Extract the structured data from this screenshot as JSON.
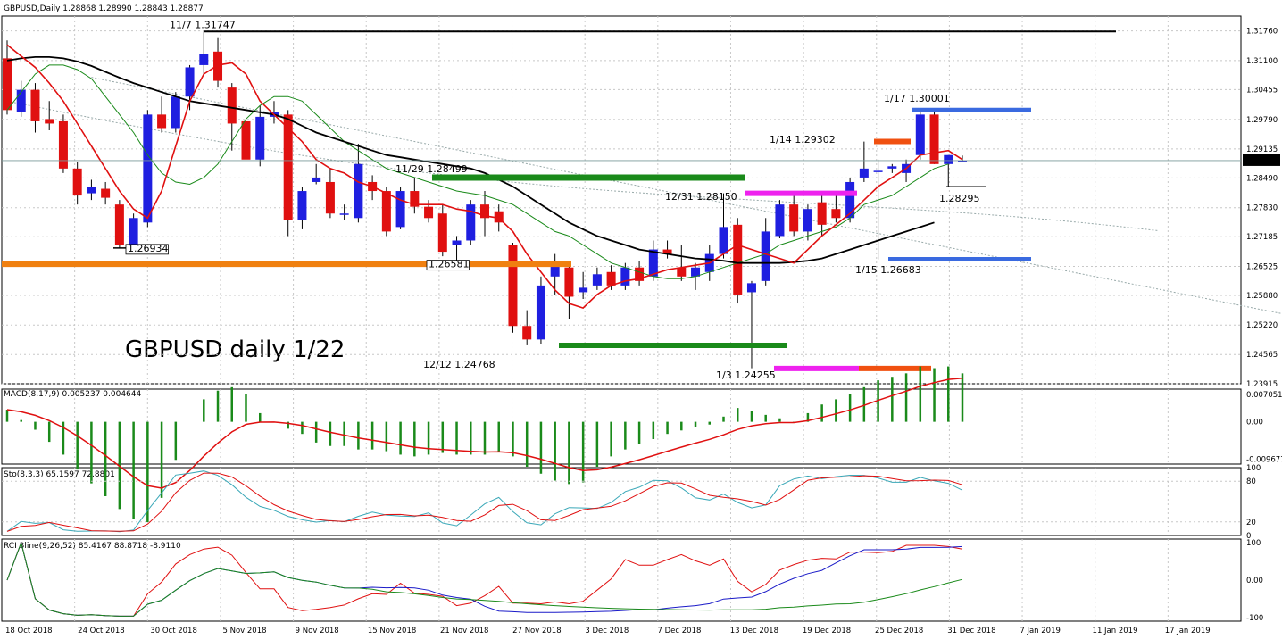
{
  "chart_data": {
    "type": "candlestick",
    "symbol_header": "GBPUSD,Daily  1.28868 1.28990 1.28843 1.28877",
    "watermark": "GBPUSD daily 1/22",
    "current_price_label": "1.28877",
    "x_labels": [
      "18 Oct 2018",
      "24 Oct 2018",
      "30 Oct 2018",
      "5 Nov 2018",
      "9 Nov 2018",
      "15 Nov 2018",
      "21 Nov 2018",
      "27 Nov 2018",
      "3 Dec 2018",
      "7 Dec 2018",
      "13 Dec 2018",
      "19 Dec 2018",
      "25 Dec 2018",
      "31 Dec 2018",
      "7 Jan 2019",
      "11 Jan 2019",
      "17 Jan 2019"
    ],
    "price_ticks": [
      "1.31760",
      "1.31100",
      "1.30455",
      "1.29790",
      "1.29135",
      "1.28490",
      "1.27830",
      "1.27185",
      "1.26525",
      "1.25880",
      "1.25220",
      "1.24565",
      "1.23915"
    ],
    "price_range": [
      1.23915,
      1.3209
    ],
    "candles": [
      {
        "o": 1.3115,
        "h": 1.3155,
        "l": 1.299,
        "c": 1.3
      },
      {
        "o": 1.2995,
        "h": 1.3065,
        "l": 1.2985,
        "c": 1.3045
      },
      {
        "o": 1.3045,
        "h": 1.306,
        "l": 1.295,
        "c": 1.2975
      },
      {
        "o": 1.298,
        "h": 1.302,
        "l": 1.2955,
        "c": 1.297
      },
      {
        "o": 1.2975,
        "h": 1.299,
        "l": 1.286,
        "c": 1.287
      },
      {
        "o": 1.287,
        "h": 1.2885,
        "l": 1.279,
        "c": 1.281
      },
      {
        "o": 1.2815,
        "h": 1.2845,
        "l": 1.28,
        "c": 1.283
      },
      {
        "o": 1.2825,
        "h": 1.284,
        "l": 1.279,
        "c": 1.2805
      },
      {
        "o": 1.279,
        "h": 1.28,
        "l": 1.2693,
        "c": 1.27
      },
      {
        "o": 1.27,
        "h": 1.277,
        "l": 1.2693,
        "c": 1.276
      },
      {
        "o": 1.275,
        "h": 1.3,
        "l": 1.274,
        "c": 1.299
      },
      {
        "o": 1.299,
        "h": 1.303,
        "l": 1.295,
        "c": 1.296
      },
      {
        "o": 1.296,
        "h": 1.304,
        "l": 1.295,
        "c": 1.303
      },
      {
        "o": 1.303,
        "h": 1.31,
        "l": 1.3,
        "c": 1.3095
      },
      {
        "o": 1.31,
        "h": 1.3175,
        "l": 1.308,
        "c": 1.3125
      },
      {
        "o": 1.313,
        "h": 1.316,
        "l": 1.305,
        "c": 1.3065
      },
      {
        "o": 1.305,
        "h": 1.306,
        "l": 1.291,
        "c": 1.297
      },
      {
        "o": 1.2975,
        "h": 1.3,
        "l": 1.288,
        "c": 1.289
      },
      {
        "o": 1.289,
        "h": 1.301,
        "l": 1.2875,
        "c": 1.2985
      },
      {
        "o": 1.2985,
        "h": 1.302,
        "l": 1.297,
        "c": 1.2995
      },
      {
        "o": 1.299,
        "h": 1.3,
        "l": 1.272,
        "c": 1.2755
      },
      {
        "o": 1.2755,
        "h": 1.283,
        "l": 1.2735,
        "c": 1.282
      },
      {
        "o": 1.284,
        "h": 1.288,
        "l": 1.2835,
        "c": 1.285
      },
      {
        "o": 1.284,
        "h": 1.287,
        "l": 1.276,
        "c": 1.277
      },
      {
        "o": 1.277,
        "h": 1.279,
        "l": 1.2755,
        "c": 1.277
      },
      {
        "o": 1.276,
        "h": 1.2925,
        "l": 1.275,
        "c": 1.288
      },
      {
        "o": 1.284,
        "h": 1.2855,
        "l": 1.28,
        "c": 1.282
      },
      {
        "o": 1.282,
        "h": 1.283,
        "l": 1.272,
        "c": 1.273
      },
      {
        "o": 1.274,
        "h": 1.283,
        "l": 1.2735,
        "c": 1.282
      },
      {
        "o": 1.282,
        "h": 1.285,
        "l": 1.277,
        "c": 1.2785
      },
      {
        "o": 1.2785,
        "h": 1.28,
        "l": 1.275,
        "c": 1.276
      },
      {
        "o": 1.277,
        "h": 1.279,
        "l": 1.2675,
        "c": 1.2685
      },
      {
        "o": 1.27,
        "h": 1.272,
        "l": 1.2658,
        "c": 1.271
      },
      {
        "o": 1.271,
        "h": 1.28,
        "l": 1.27,
        "c": 1.279
      },
      {
        "o": 1.279,
        "h": 1.282,
        "l": 1.272,
        "c": 1.276
      },
      {
        "o": 1.2775,
        "h": 1.279,
        "l": 1.273,
        "c": 1.275
      },
      {
        "o": 1.27,
        "h": 1.2705,
        "l": 1.2505,
        "c": 1.252
      },
      {
        "o": 1.252,
        "h": 1.2555,
        "l": 1.2477,
        "c": 1.249
      },
      {
        "o": 1.249,
        "h": 1.263,
        "l": 1.248,
        "c": 1.261
      },
      {
        "o": 1.263,
        "h": 1.268,
        "l": 1.259,
        "c": 1.266
      },
      {
        "o": 1.265,
        "h": 1.266,
        "l": 1.2535,
        "c": 1.2585
      },
      {
        "o": 1.2595,
        "h": 1.264,
        "l": 1.258,
        "c": 1.2605
      },
      {
        "o": 1.261,
        "h": 1.265,
        "l": 1.26,
        "c": 1.2635
      },
      {
        "o": 1.264,
        "h": 1.2655,
        "l": 1.26,
        "c": 1.261
      },
      {
        "o": 1.261,
        "h": 1.266,
        "l": 1.26,
        "c": 1.265
      },
      {
        "o": 1.265,
        "h": 1.2665,
        "l": 1.261,
        "c": 1.262
      },
      {
        "o": 1.263,
        "h": 1.271,
        "l": 1.262,
        "c": 1.269
      },
      {
        "o": 1.269,
        "h": 1.271,
        "l": 1.267,
        "c": 1.268
      },
      {
        "o": 1.265,
        "h": 1.27,
        "l": 1.262,
        "c": 1.263
      },
      {
        "o": 1.263,
        "h": 1.266,
        "l": 1.26,
        "c": 1.265
      },
      {
        "o": 1.264,
        "h": 1.27,
        "l": 1.262,
        "c": 1.268
      },
      {
        "o": 1.268,
        "h": 1.2815,
        "l": 1.267,
        "c": 1.274
      },
      {
        "o": 1.2745,
        "h": 1.276,
        "l": 1.257,
        "c": 1.259
      },
      {
        "o": 1.2595,
        "h": 1.262,
        "l": 1.2426,
        "c": 1.2615
      },
      {
        "o": 1.262,
        "h": 1.276,
        "l": 1.261,
        "c": 1.273
      },
      {
        "o": 1.272,
        "h": 1.28,
        "l": 1.2715,
        "c": 1.279
      },
      {
        "o": 1.279,
        "h": 1.281,
        "l": 1.272,
        "c": 1.273
      },
      {
        "o": 1.273,
        "h": 1.279,
        "l": 1.271,
        "c": 1.278
      },
      {
        "o": 1.2795,
        "h": 1.281,
        "l": 1.272,
        "c": 1.2745
      },
      {
        "o": 1.278,
        "h": 1.281,
        "l": 1.275,
        "c": 1.276
      },
      {
        "o": 1.276,
        "h": 1.285,
        "l": 1.275,
        "c": 1.284
      },
      {
        "o": 1.285,
        "h": 1.293,
        "l": 1.284,
        "c": 1.287
      },
      {
        "o": 1.2865,
        "h": 1.289,
        "l": 1.2668,
        "c": 1.2865
      },
      {
        "o": 1.287,
        "h": 1.288,
        "l": 1.286,
        "c": 1.2875
      },
      {
        "o": 1.286,
        "h": 1.289,
        "l": 1.284,
        "c": 1.288
      },
      {
        "o": 1.29,
        "h": 1.3,
        "l": 1.289,
        "c": 1.299
      },
      {
        "o": 1.299,
        "h": 1.2995,
        "l": 1.288,
        "c": 1.288
      },
      {
        "o": 1.288,
        "h": 1.29,
        "l": 1.283,
        "c": 1.29
      },
      {
        "o": 1.2887,
        "h": 1.2899,
        "l": 1.2884,
        "c": 1.2888
      }
    ],
    "ma_red": [
      1.3145,
      1.312,
      1.3095,
      1.306,
      1.302,
      1.297,
      1.292,
      1.287,
      1.282,
      1.278,
      1.276,
      1.282,
      1.292,
      1.302,
      1.308,
      1.31,
      1.3105,
      1.308,
      1.302,
      1.299,
      1.296,
      1.293,
      1.289,
      1.287,
      1.286,
      1.284,
      1.283,
      1.2815,
      1.28,
      1.279,
      1.279,
      1.279,
      1.278,
      1.2775,
      1.2765,
      1.276,
      1.273,
      1.268,
      1.264,
      1.26,
      1.257,
      1.256,
      1.259,
      1.261,
      1.262,
      1.2625,
      1.2635,
      1.2645,
      1.265,
      1.2655,
      1.266,
      1.268,
      1.27,
      1.269,
      1.268,
      1.267,
      1.266,
      1.269,
      1.272,
      1.2745,
      1.277,
      1.28,
      1.283,
      1.285,
      1.287,
      1.29,
      1.2905,
      1.291,
      1.289
    ],
    "ma_green": [
      1.3,
      1.304,
      1.308,
      1.31,
      1.31,
      1.309,
      1.307,
      1.303,
      1.299,
      1.295,
      1.29,
      1.286,
      1.284,
      1.2835,
      1.285,
      1.288,
      1.293,
      1.298,
      1.301,
      1.303,
      1.303,
      1.302,
      1.299,
      1.296,
      1.293,
      1.291,
      1.289,
      1.287,
      1.286,
      1.285,
      1.284,
      1.283,
      1.282,
      1.2815,
      1.281,
      1.28,
      1.279,
      1.277,
      1.275,
      1.273,
      1.272,
      1.27,
      1.268,
      1.266,
      1.265,
      1.264,
      1.263,
      1.2625,
      1.2625,
      1.263,
      1.264,
      1.265,
      1.266,
      1.267,
      1.268,
      1.27,
      1.271,
      1.272,
      1.273,
      1.274,
      1.276,
      1.279,
      1.28,
      1.281,
      1.283,
      1.285,
      1.287,
      1.288
    ],
    "ma_black": [
      1.311,
      1.3115,
      1.3118,
      1.3118,
      1.3115,
      1.3108,
      1.3098,
      1.3085,
      1.3072,
      1.306,
      1.305,
      1.304,
      1.303,
      1.302,
      1.3015,
      1.301,
      1.3005,
      1.3,
      1.2995,
      1.299,
      1.298,
      1.2965,
      1.295,
      1.294,
      1.293,
      1.292,
      1.291,
      1.29,
      1.2895,
      1.289,
      1.2885,
      1.288,
      1.2875,
      1.287,
      1.286,
      1.2845,
      1.283,
      1.281,
      1.279,
      1.277,
      1.275,
      1.2735,
      1.272,
      1.271,
      1.27,
      1.269,
      1.2685,
      1.268,
      1.2675,
      1.267,
      1.2668,
      1.2665,
      1.266,
      1.266,
      1.266,
      1.266,
      1.2662,
      1.2665,
      1.267,
      1.268,
      1.269,
      1.27,
      1.271,
      1.272,
      1.273,
      1.274,
      1.275
    ],
    "annotations": [
      "11/7 1.31747",
      "1.26934",
      "11/29 1.28499",
      "1.26581",
      "12/12 1.24768",
      "12/31 1.28150",
      "1/3 1.24255",
      "1/14 1.29302",
      "1/17 1.30001",
      "1.28295",
      "1/15 1.26683"
    ],
    "macd": {
      "header": "MACD(8,17,9) 0.005237 0.004644",
      "ticks": [
        "0.007051",
        "0.00",
        "-0.009677"
      ],
      "range": [
        -0.011,
        0.0085
      ]
    },
    "stoch": {
      "header": "Sto(8,3,3) 65.1597 72.8801",
      "ticks": [
        "100",
        "80",
        "20",
        "0"
      ],
      "range": [
        0,
        100
      ]
    },
    "rci": {
      "header": "RCI 3line(9,26,52) 85.4167 88.8718 -8.9110",
      "ticks": [
        "100",
        "0.00",
        "-100"
      ],
      "range": [
        -110,
        110
      ]
    }
  }
}
